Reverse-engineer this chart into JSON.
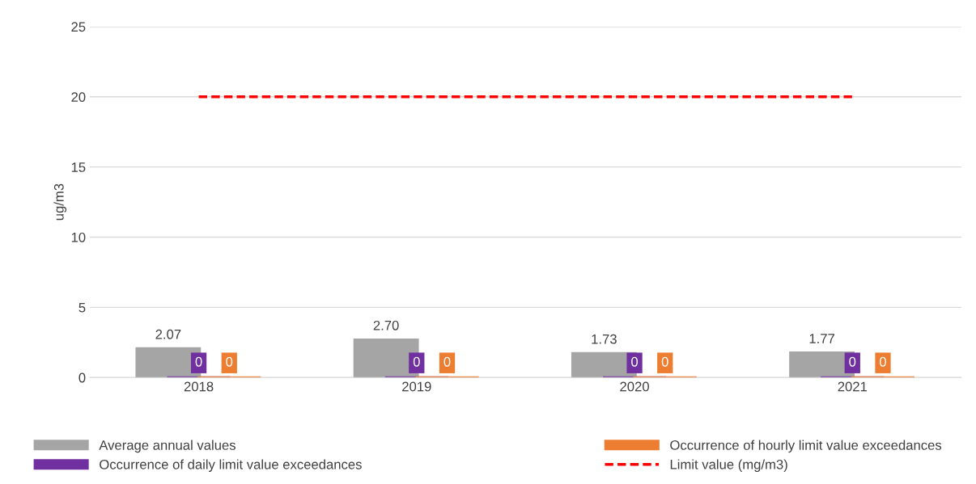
{
  "chart_data": {
    "type": "bar",
    "ylabel": "ug/m3",
    "categories": [
      "2018",
      "2019",
      "2020",
      "2021"
    ],
    "series": [
      {
        "name": "Average annual values",
        "color": "#a5a5a5",
        "values": [
          2.07,
          2.7,
          1.73,
          1.77
        ],
        "value_labels": [
          "2.07",
          "2.70",
          "1.73",
          "1.77"
        ]
      },
      {
        "name": "Occurrence of daily limit value exceedances",
        "color": "#7030a0",
        "values": [
          0,
          0,
          0,
          0
        ],
        "value_labels": [
          "0",
          "0",
          "0",
          "0"
        ]
      },
      {
        "name": "Occurrence of hourly limit value exceedances",
        "color": "#ed7d31",
        "values": [
          0,
          0,
          0,
          0
        ],
        "value_labels": [
          "0",
          "0",
          "0",
          "0"
        ]
      },
      {
        "name": "Limit value (mg/m3)",
        "type": "line",
        "color": "#ff0000",
        "line_style": "dashed",
        "values": [
          20,
          20,
          20,
          20
        ]
      }
    ],
    "ylim": [
      0,
      25
    ],
    "yticks": [
      0,
      5,
      10,
      15,
      20,
      25
    ],
    "grid": "y",
    "legend": "bottom"
  }
}
